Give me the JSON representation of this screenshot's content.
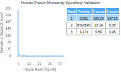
{
  "chart_data": {
    "type": "bar",
    "title": "Human Protein Microarray Specificity Validation",
    "xlabel": "Signal Rank (Top 40)",
    "ylabel": "Strength of Signal (Z score)",
    "x": [
      1,
      2,
      3,
      4,
      5,
      6,
      7,
      8,
      9,
      10,
      11,
      12,
      13,
      14,
      15,
      16,
      17,
      18,
      19,
      20,
      21,
      22,
      23,
      24,
      25,
      26,
      27,
      28,
      29,
      30,
      31,
      32,
      33,
      34,
      35,
      36,
      37,
      38,
      39,
      40
    ],
    "series": [
      {
        "type": "bar",
        "color": "#4da6ff",
        "values": [
          250.29,
          13.14,
          0.58,
          null,
          null,
          null,
          null,
          null,
          null,
          null,
          null,
          null,
          null,
          null,
          null,
          null,
          null,
          null,
          null,
          null,
          null,
          null,
          null,
          null,
          null,
          null,
          null,
          null,
          null,
          null,
          null,
          null,
          null,
          null,
          null,
          null,
          null,
          null,
          null,
          null
        ]
      },
      {
        "type": "scatter",
        "color": "#4da6ff",
        "marker": "circle",
        "values": [
          null,
          null,
          null,
          0.45,
          0.38,
          0.32,
          0.28,
          0.25,
          0.22,
          0.2,
          0.18,
          0.16,
          0.15,
          0.14,
          0.13,
          0.12,
          0.11,
          0.1,
          0.09,
          0.08,
          0.08,
          0.07,
          0.07,
          0.06,
          0.06,
          0.05,
          0.05,
          0.05,
          0.04,
          0.04,
          0.04,
          0.04,
          0.03,
          0.03,
          0.03,
          0.03,
          0.02,
          0.02,
          0.02,
          0.02
        ]
      }
    ],
    "xlim": [
      0,
      40
    ],
    "xticks": [
      1,
      10,
      19,
      28,
      37
    ],
    "ylim": [
      0,
      261
    ],
    "yticks": [
      0,
      37,
      75,
      112,
      149,
      187,
      224,
      261
    ],
    "grid": false,
    "table": {
      "headers": [
        "Rank",
        "Protein",
        "Z score",
        "S score"
      ],
      "rows": [
        [
          "1",
          "CD2L",
          "250.29",
          "137.16"
        ],
        [
          "2",
          "BSUBP2",
          "13.14",
          "6.38"
        ],
        [
          "3",
          "IL17s",
          "0.58",
          "0.45"
        ]
      ],
      "colors": [
        "#4da6ff",
        "#aad4f5",
        "#ffffff",
        "#ffffff"
      ]
    }
  }
}
